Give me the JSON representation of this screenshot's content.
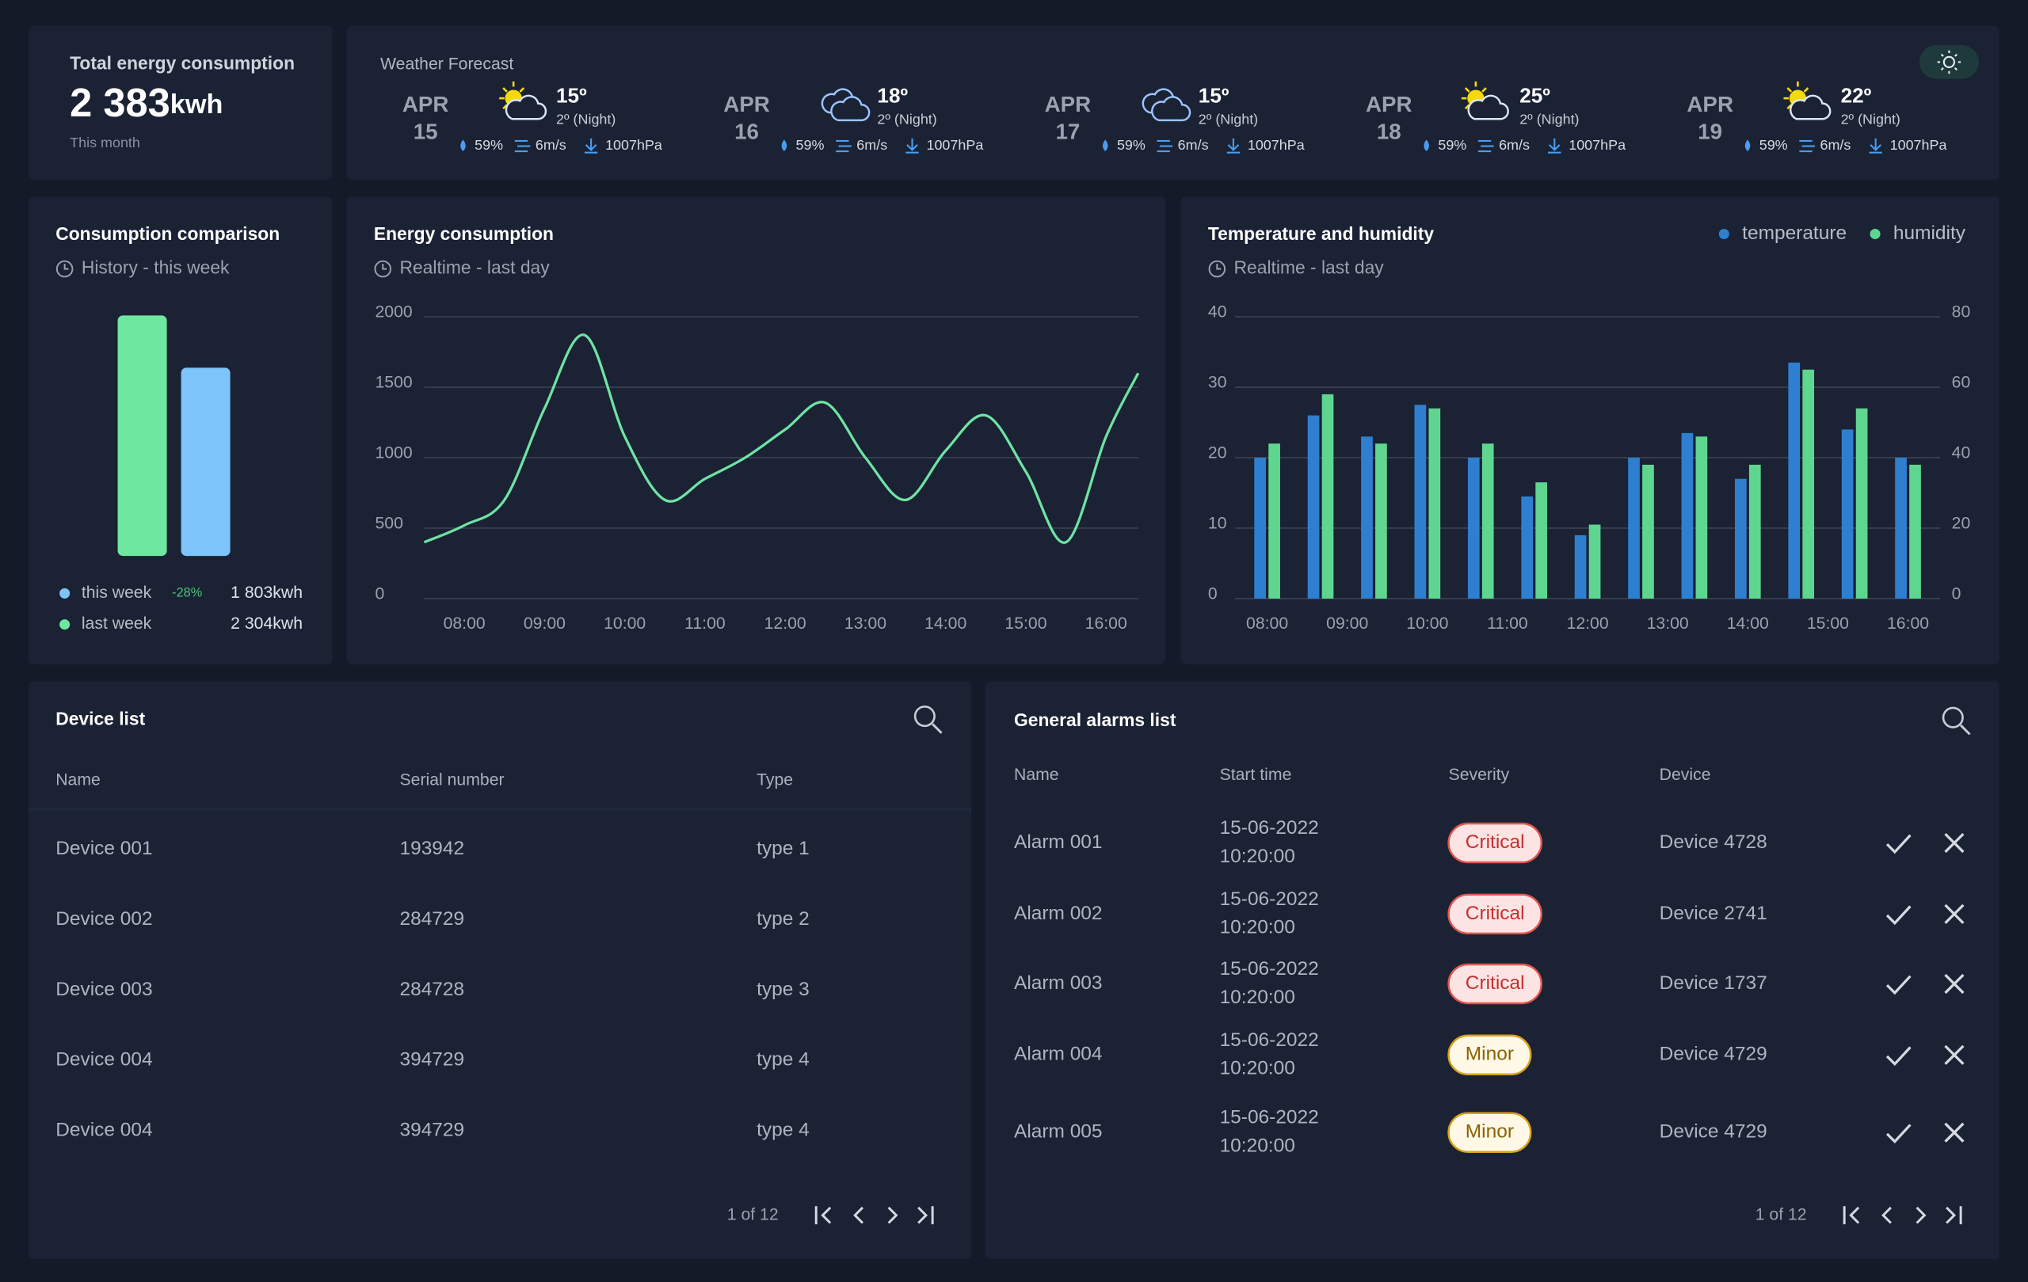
{
  "energy": {
    "title": "Total energy consumption",
    "value": "2 383",
    "unit": "kwh",
    "period": "This month"
  },
  "weather": {
    "title": "Weather Forecast",
    "days": [
      {
        "month": "APR",
        "day": "15",
        "temp": "15º",
        "night": "2º (Night)",
        "humidity": "59%",
        "wind": "6m/s",
        "pressure": "1007hPa"
      },
      {
        "month": "APR",
        "day": "16",
        "temp": "18º",
        "night": "2º (Night)",
        "humidity": "59%",
        "wind": "6m/s",
        "pressure": "1007hPa"
      },
      {
        "month": "APR",
        "day": "17",
        "temp": "15º",
        "night": "2º (Night)",
        "humidity": "59%",
        "wind": "6m/s",
        "pressure": "1007hPa"
      },
      {
        "month": "APR",
        "day": "18",
        "temp": "25º",
        "night": "2º (Night)",
        "humidity": "59%",
        "wind": "6m/s",
        "pressure": "1007hPa"
      },
      {
        "month": "APR",
        "day": "19",
        "temp": "22º",
        "night": "2º (Night)",
        "humidity": "59%",
        "wind": "6m/s",
        "pressure": "1007hPa"
      }
    ]
  },
  "chart_data": [
    {
      "type": "bar",
      "title": "Consumption comparison",
      "subtitle": "History - this week",
      "change": "-28%",
      "series": [
        {
          "name": "this week",
          "color": "#7cc4fa",
          "values": [
            1803
          ],
          "value_labels": [
            "1 803kwh"
          ]
        },
        {
          "name": "last week",
          "color": "#6ee7a0",
          "values": [
            2304
          ],
          "value_labels": [
            "2 304kwh"
          ]
        }
      ]
    },
    {
      "type": "line",
      "title": "Energy consumption",
      "subtitle": "Realtime - last day",
      "color": "#6fe3a3",
      "x": [
        450,
        480,
        510,
        540,
        570,
        600,
        630,
        660,
        690,
        720,
        750,
        780,
        810,
        840,
        870,
        900,
        930,
        960,
        984
      ],
      "values": [
        400,
        520,
        700,
        1350,
        1870,
        1150,
        700,
        850,
        1000,
        1200,
        1390,
        1000,
        700,
        1050,
        1300,
        900,
        400,
        1150,
        1600
      ],
      "xlim": [
        450,
        984
      ],
      "xticks": [
        {
          "value": 480,
          "label": "08:00"
        },
        {
          "value": 540,
          "label": "09:00"
        },
        {
          "value": 600,
          "label": "10:00"
        },
        {
          "value": 660,
          "label": "11:00"
        },
        {
          "value": 720,
          "label": "12:00"
        },
        {
          "value": 780,
          "label": "13:00"
        },
        {
          "value": 840,
          "label": "14:00"
        },
        {
          "value": 900,
          "label": "15:00"
        },
        {
          "value": 960,
          "label": "16:00"
        }
      ],
      "ylim": [
        0,
        2000
      ],
      "yticks": [
        0,
        500,
        1000,
        1500,
        2000
      ],
      "grid": true
    },
    {
      "type": "bar",
      "title": "Temperature and humidity",
      "subtitle": "Realtime - last day",
      "legend": "top-right",
      "grid": true,
      "x": [
        480,
        520,
        560,
        600,
        640,
        680,
        720,
        760,
        800,
        840,
        880,
        920,
        960
      ],
      "xlim": [
        456,
        984
      ],
      "xticks": [
        {
          "value": 480,
          "label": "08:00"
        },
        {
          "value": 540,
          "label": "09:00"
        },
        {
          "value": 600,
          "label": "10:00"
        },
        {
          "value": 660,
          "label": "11:00"
        },
        {
          "value": 720,
          "label": "12:00"
        },
        {
          "value": 780,
          "label": "13:00"
        },
        {
          "value": 840,
          "label": "14:00"
        },
        {
          "value": 900,
          "label": "15:00"
        },
        {
          "value": 960,
          "label": "16:00"
        }
      ],
      "ylim": [
        0,
        40
      ],
      "yticks": [
        0,
        10,
        20,
        30,
        40
      ],
      "y2lim": [
        0,
        80
      ],
      "y2ticks": [
        0,
        20,
        40,
        60,
        80
      ],
      "series": [
        {
          "name": "temperature",
          "color": "#2f7fd0",
          "values": [
            20,
            26,
            23,
            27.5,
            20,
            14.5,
            9,
            20,
            23.5,
            17,
            33.5,
            24,
            20
          ]
        },
        {
          "name": "humidity",
          "color": "#5fd68f",
          "axis": "y2",
          "values": [
            44,
            58,
            44,
            54,
            44,
            33,
            21,
            38,
            46,
            38,
            65,
            54,
            38
          ]
        }
      ]
    }
  ],
  "device_list": {
    "title": "Device list",
    "columns": [
      "Name",
      "Serial number",
      "Type"
    ],
    "rows": [
      [
        "Device 001",
        "193942",
        "type 1"
      ],
      [
        "Device 002",
        "284729",
        "type 2"
      ],
      [
        "Device 003",
        "284728",
        "type 3"
      ],
      [
        "Device 004",
        "394729",
        "type 4"
      ],
      [
        "Device 004",
        "394729",
        "type 4"
      ]
    ],
    "pagination": "1 of 12"
  },
  "alarms": {
    "title": "General alarms list",
    "columns": [
      "Name",
      "Start time",
      "Severity",
      "Device"
    ],
    "rows": [
      {
        "name": "Alarm 001",
        "date": "15-06-2022",
        "time": "10:20:00",
        "severity": "Critical",
        "device": "Device 4728"
      },
      {
        "name": "Alarm 002",
        "date": "15-06-2022",
        "time": "10:20:00",
        "severity": "Critical",
        "device": "Device 2741"
      },
      {
        "name": "Alarm 003",
        "date": "15-06-2022",
        "time": "10:20:00",
        "severity": "Critical",
        "device": "Device 1737"
      },
      {
        "name": "Alarm 004",
        "date": "15-06-2022",
        "time": "10:20:00",
        "severity": "Minor",
        "device": "Device 4729"
      },
      {
        "name": "Alarm 005",
        "date": "15-06-2022",
        "time": "10:20:00",
        "severity": "Minor",
        "device": "Device 4729"
      }
    ],
    "severity_colors": {
      "Critical": {
        "stroke": "#e0564f",
        "fill": "#fde4e4",
        "text": "#c62f2f"
      },
      "Minor": {
        "stroke": "#d9a21b",
        "fill": "#fff8e6",
        "text": "#8a6200"
      }
    },
    "pagination": "1 of 12"
  }
}
